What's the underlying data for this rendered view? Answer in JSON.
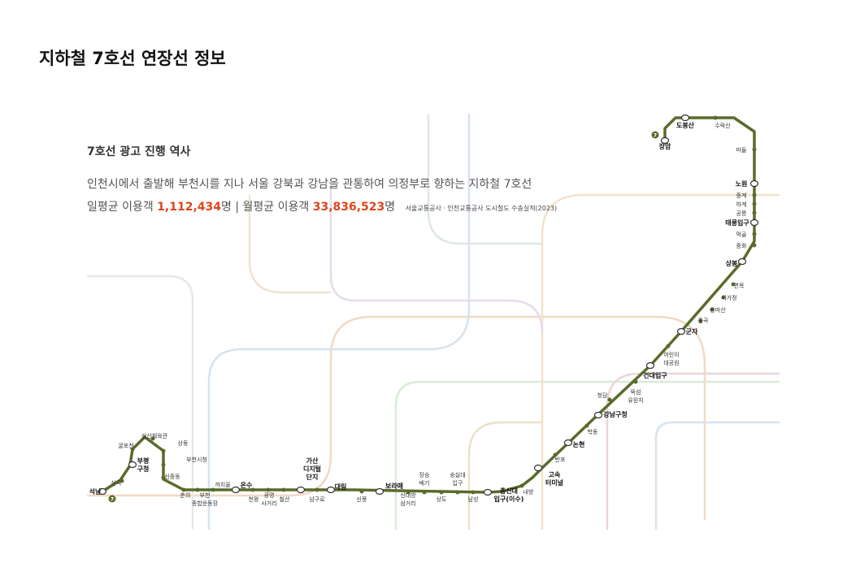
{
  "title": "지하철 7호선 연장선 정보",
  "info": {
    "heading": "7호선 광고 진행 역사",
    "description": "인천시에서 출발해 부천시를 지나 서울 강북과 강남을 관통하여 의정부로 향하는 지하철 7호선",
    "daily_label": "일평균 이용객",
    "daily_value": "1,112,434",
    "daily_unit": "명",
    "separator": "|",
    "monthly_label": "월평균 이용객",
    "monthly_value": "33,836,523",
    "monthly_unit": "명",
    "source": "서울교통공사 · 인천교통공사 도시철도 수송실적(2023)"
  },
  "line": {
    "color": "#5a6b2a",
    "badge_number": "7",
    "stations": [
      {
        "name": "장암",
        "bold": true
      },
      {
        "name": "도봉산",
        "bold": true
      },
      {
        "name": "수락산",
        "bold": false
      },
      {
        "name": "마들",
        "bold": false
      },
      {
        "name": "노원",
        "bold": true
      },
      {
        "name": "중계",
        "bold": false
      },
      {
        "name": "하계",
        "bold": false
      },
      {
        "name": "공릉",
        "bold": false
      },
      {
        "name": "태릉입구",
        "bold": true
      },
      {
        "name": "먹골",
        "bold": false
      },
      {
        "name": "중화",
        "bold": false
      },
      {
        "name": "상봉",
        "bold": true
      },
      {
        "name": "면목",
        "bold": false
      },
      {
        "name": "사가정",
        "bold": false
      },
      {
        "name": "용마산",
        "bold": false
      },
      {
        "name": "중곡",
        "bold": false
      },
      {
        "name": "군자",
        "bold": true
      },
      {
        "name": "어린이대공원",
        "bold": false
      },
      {
        "name": "건대입구",
        "bold": true
      },
      {
        "name": "뚝섬유원지",
        "bold": false
      },
      {
        "name": "청담",
        "bold": false
      },
      {
        "name": "강남구청",
        "bold": true
      },
      {
        "name": "학동",
        "bold": false
      },
      {
        "name": "논현",
        "bold": true
      },
      {
        "name": "반포",
        "bold": false
      },
      {
        "name": "고속터미널",
        "bold": true
      },
      {
        "name": "내방",
        "bold": false
      },
      {
        "name": "총신대입구(이수)",
        "bold": true
      },
      {
        "name": "남성",
        "bold": false
      },
      {
        "name": "숭실대입구",
        "bold": false
      },
      {
        "name": "상도",
        "bold": false
      },
      {
        "name": "장승배기",
        "bold": false
      },
      {
        "name": "신대방삼거리",
        "bold": false
      },
      {
        "name": "보라매",
        "bold": true
      },
      {
        "name": "신풍",
        "bold": false
      },
      {
        "name": "대림",
        "bold": true
      },
      {
        "name": "남구로",
        "bold": false
      },
      {
        "name": "가산디지털단지",
        "bold": true
      },
      {
        "name": "철산",
        "bold": false
      },
      {
        "name": "광명사거리",
        "bold": false
      },
      {
        "name": "천왕",
        "bold": false
      },
      {
        "name": "온수",
        "bold": true
      },
      {
        "name": "까치울",
        "bold": false
      },
      {
        "name": "부천종합운동장",
        "bold": false
      },
      {
        "name": "춘의",
        "bold": false
      },
      {
        "name": "신중동",
        "bold": false
      },
      {
        "name": "부천시청",
        "bold": false
      },
      {
        "name": "상동",
        "bold": false
      },
      {
        "name": "삼산체육관",
        "bold": false
      },
      {
        "name": "굴포천",
        "bold": false
      },
      {
        "name": "부평구청",
        "bold": true
      },
      {
        "name": "산곡",
        "bold": false
      },
      {
        "name": "석남",
        "bold": true
      }
    ]
  }
}
